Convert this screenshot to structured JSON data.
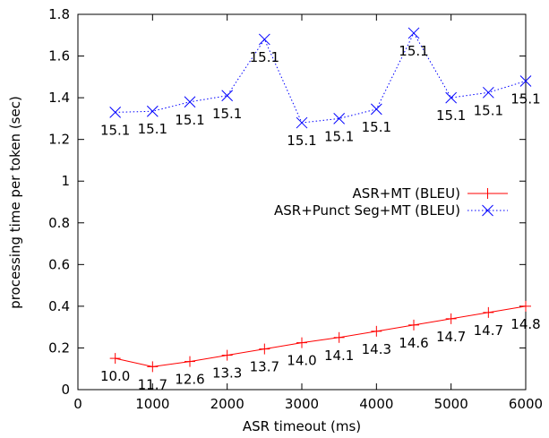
{
  "chart_data": {
    "type": "line",
    "title": "",
    "xlabel": "ASR timeout (ms)",
    "ylabel": "processing time per token (sec)",
    "xlim": [
      0,
      6000
    ],
    "ylim": [
      0,
      1.8
    ],
    "xticks": [
      "0",
      "1000",
      "2000",
      "3000",
      "4000",
      "5000",
      "6000"
    ],
    "yticks": [
      "0",
      "0.2",
      "0.4",
      "0.6",
      "0.8",
      "1",
      "1.2",
      "1.4",
      "1.6",
      "1.8"
    ],
    "grid": false,
    "legend_position": "right",
    "series": [
      {
        "name": "ASR+MT (BLEU)",
        "color": "#ff0000",
        "line_style": "solid",
        "marker": "plus",
        "x": [
          500,
          1000,
          1500,
          2000,
          2500,
          3000,
          3500,
          4000,
          4500,
          5000,
          5500,
          6000
        ],
        "y": [
          0.15,
          0.11,
          0.135,
          0.165,
          0.195,
          0.225,
          0.25,
          0.28,
          0.31,
          0.34,
          0.37,
          0.4
        ],
        "labels": [
          "10.0",
          "11.7",
          "12.6",
          "13.3",
          "13.7",
          "14.0",
          "14.1",
          "14.3",
          "14.6",
          "14.7",
          "14.7",
          "14.8"
        ]
      },
      {
        "name": "ASR+Punct Seg+MT (BLEU)",
        "color": "#0000ff",
        "line_style": "dotted",
        "marker": "x",
        "x": [
          500,
          1000,
          1500,
          2000,
          2500,
          3000,
          3500,
          4000,
          4500,
          5000,
          5500,
          6000
        ],
        "y": [
          1.33,
          1.335,
          1.38,
          1.41,
          1.68,
          1.28,
          1.3,
          1.345,
          1.71,
          1.4,
          1.425,
          1.48
        ],
        "labels": [
          "15.1",
          "15.1",
          "15.1",
          "15.1",
          "15.1",
          "15.1",
          "15.1",
          "15.1",
          "15.1",
          "15.1",
          "15.1",
          "15.1"
        ]
      }
    ]
  }
}
